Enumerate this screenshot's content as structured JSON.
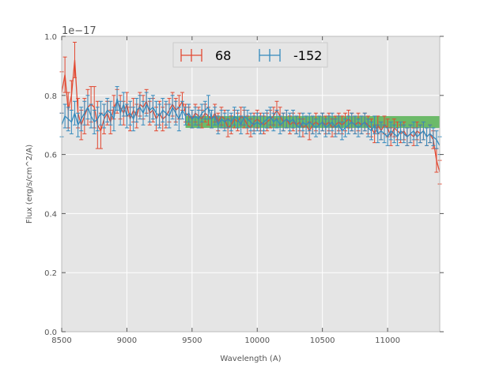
{
  "chart_data": {
    "type": "line",
    "title": "",
    "xlabel": "Wavelength (A)",
    "ylabel": "Flux (erg/s/cm^2/A)",
    "offset_text": "1e−17",
    "xlim": [
      8500,
      11400
    ],
    "ylim": [
      0.0,
      1.0
    ],
    "x_ticks": [
      8500,
      9000,
      9500,
      10000,
      10500,
      11000
    ],
    "x_tick_labels": [
      "8500",
      "9000",
      "9500",
      "10000",
      "10500",
      "11000"
    ],
    "y_ticks": [
      0.0,
      0.2,
      0.4,
      0.6,
      0.8,
      1.0
    ],
    "y_tick_labels": [
      "0.0",
      "0.2",
      "0.4",
      "0.6",
      "0.8",
      "1.0"
    ],
    "grid": true,
    "legend_position": "top-center",
    "band": {
      "x": [
        9450,
        11400
      ],
      "y": [
        0.69,
        0.73
      ],
      "color": "#4daf4a"
    },
    "series": [
      {
        "name": "68",
        "color": "#e24a33",
        "x": [
          8500,
          8525,
          8550,
          8575,
          8600,
          8625,
          8650,
          8675,
          8700,
          8725,
          8750,
          8775,
          8800,
          8825,
          8850,
          8875,
          8900,
          8925,
          8950,
          8975,
          9000,
          9025,
          9050,
          9075,
          9100,
          9125,
          9150,
          9175,
          9200,
          9225,
          9250,
          9275,
          9300,
          9325,
          9350,
          9375,
          9400,
          9425,
          9450,
          9475,
          9500,
          9525,
          9550,
          9575,
          9600,
          9625,
          9650,
          9675,
          9700,
          9725,
          9750,
          9775,
          9800,
          9825,
          9850,
          9875,
          9900,
          9925,
          9950,
          9975,
          10000,
          10025,
          10050,
          10075,
          10100,
          10125,
          10150,
          10175,
          10200,
          10225,
          10250,
          10275,
          10300,
          10325,
          10350,
          10375,
          10400,
          10425,
          10450,
          10475,
          10500,
          10525,
          10550,
          10575,
          10600,
          10625,
          10650,
          10675,
          10700,
          10725,
          10750,
          10775,
          10800,
          10825,
          10850,
          10875,
          10900,
          10925,
          10950,
          10975,
          11000,
          11025,
          11050,
          11075,
          11100,
          11125,
          11150,
          11175,
          11200,
          11225,
          11250,
          11275,
          11300,
          11325,
          11350,
          11375,
          11400
        ],
        "values": [
          0.81,
          0.87,
          0.75,
          0.8,
          0.92,
          0.74,
          0.7,
          0.73,
          0.76,
          0.77,
          0.76,
          0.7,
          0.68,
          0.72,
          0.74,
          0.71,
          0.76,
          0.78,
          0.76,
          0.74,
          0.77,
          0.72,
          0.75,
          0.73,
          0.77,
          0.76,
          0.78,
          0.74,
          0.75,
          0.72,
          0.74,
          0.72,
          0.73,
          0.75,
          0.77,
          0.75,
          0.76,
          0.78,
          0.74,
          0.73,
          0.72,
          0.74,
          0.73,
          0.72,
          0.74,
          0.73,
          0.72,
          0.74,
          0.71,
          0.73,
          0.72,
          0.69,
          0.7,
          0.72,
          0.71,
          0.73,
          0.72,
          0.7,
          0.69,
          0.71,
          0.72,
          0.71,
          0.7,
          0.71,
          0.72,
          0.73,
          0.75,
          0.73,
          0.71,
          0.72,
          0.7,
          0.71,
          0.7,
          0.71,
          0.69,
          0.7,
          0.68,
          0.7,
          0.71,
          0.7,
          0.71,
          0.7,
          0.71,
          0.69,
          0.7,
          0.71,
          0.7,
          0.71,
          0.72,
          0.71,
          0.7,
          0.71,
          0.7,
          0.71,
          0.7,
          0.69,
          0.67,
          0.7,
          0.68,
          0.7,
          0.69,
          0.66,
          0.69,
          0.68,
          0.67,
          0.68,
          0.66,
          0.67,
          0.66,
          0.68,
          0.67,
          0.68,
          0.66,
          0.67,
          0.65,
          0.58,
          0.54
        ],
        "errors": [
          0.07,
          0.06,
          0.06,
          0.05,
          0.06,
          0.05,
          0.05,
          0.06,
          0.06,
          0.06,
          0.07,
          0.08,
          0.06,
          0.05,
          0.04,
          0.04,
          0.04,
          0.04,
          0.04,
          0.04,
          0.04,
          0.04,
          0.04,
          0.04,
          0.04,
          0.04,
          0.04,
          0.04,
          0.04,
          0.04,
          0.04,
          0.04,
          0.04,
          0.04,
          0.04,
          0.04,
          0.04,
          0.03,
          0.03,
          0.03,
          0.03,
          0.03,
          0.03,
          0.03,
          0.03,
          0.03,
          0.03,
          0.03,
          0.03,
          0.03,
          0.03,
          0.03,
          0.03,
          0.03,
          0.03,
          0.03,
          0.03,
          0.03,
          0.03,
          0.03,
          0.03,
          0.03,
          0.03,
          0.03,
          0.03,
          0.03,
          0.03,
          0.03,
          0.03,
          0.03,
          0.03,
          0.03,
          0.03,
          0.03,
          0.03,
          0.03,
          0.03,
          0.03,
          0.03,
          0.03,
          0.03,
          0.03,
          0.03,
          0.03,
          0.03,
          0.03,
          0.03,
          0.03,
          0.03,
          0.03,
          0.03,
          0.03,
          0.03,
          0.03,
          0.03,
          0.03,
          0.03,
          0.03,
          0.03,
          0.03,
          0.03,
          0.03,
          0.03,
          0.03,
          0.03,
          0.03,
          0.03,
          0.03,
          0.03,
          0.03,
          0.03,
          0.03,
          0.03,
          0.03,
          0.03,
          0.04,
          0.04
        ]
      },
      {
        "name": "-152",
        "color": "#348abd",
        "x": [
          8500,
          8525,
          8550,
          8575,
          8600,
          8625,
          8650,
          8675,
          8700,
          8725,
          8750,
          8775,
          8800,
          8825,
          8850,
          8875,
          8900,
          8925,
          8950,
          8975,
          9000,
          9025,
          9050,
          9075,
          9100,
          9125,
          9150,
          9175,
          9200,
          9225,
          9250,
          9275,
          9300,
          9325,
          9350,
          9375,
          9400,
          9425,
          9450,
          9475,
          9500,
          9525,
          9550,
          9575,
          9600,
          9625,
          9650,
          9675,
          9700,
          9725,
          9750,
          9775,
          9800,
          9825,
          9850,
          9875,
          9900,
          9925,
          9950,
          9975,
          10000,
          10025,
          10050,
          10075,
          10100,
          10125,
          10150,
          10175,
          10200,
          10225,
          10250,
          10275,
          10300,
          10325,
          10350,
          10375,
          10400,
          10425,
          10450,
          10475,
          10500,
          10525,
          10550,
          10575,
          10600,
          10625,
          10650,
          10675,
          10700,
          10725,
          10750,
          10775,
          10800,
          10825,
          10850,
          10875,
          10900,
          10925,
          10950,
          10975,
          11000,
          11025,
          11050,
          11075,
          11100,
          11125,
          11150,
          11175,
          11200,
          11225,
          11250,
          11275,
          11300,
          11325,
          11350,
          11375,
          11400
        ],
        "values": [
          0.7,
          0.73,
          0.72,
          0.71,
          0.74,
          0.7,
          0.72,
          0.74,
          0.76,
          0.73,
          0.71,
          0.72,
          0.74,
          0.73,
          0.75,
          0.74,
          0.72,
          0.79,
          0.74,
          0.77,
          0.73,
          0.74,
          0.72,
          0.75,
          0.76,
          0.74,
          0.77,
          0.75,
          0.76,
          0.74,
          0.73,
          0.75,
          0.74,
          0.73,
          0.76,
          0.74,
          0.72,
          0.75,
          0.73,
          0.74,
          0.72,
          0.73,
          0.72,
          0.74,
          0.75,
          0.76,
          0.72,
          0.73,
          0.7,
          0.72,
          0.71,
          0.72,
          0.71,
          0.73,
          0.72,
          0.7,
          0.73,
          0.72,
          0.71,
          0.7,
          0.71,
          0.7,
          0.71,
          0.72,
          0.73,
          0.71,
          0.72,
          0.7,
          0.71,
          0.72,
          0.71,
          0.72,
          0.7,
          0.69,
          0.71,
          0.7,
          0.71,
          0.7,
          0.69,
          0.7,
          0.71,
          0.69,
          0.7,
          0.71,
          0.69,
          0.7,
          0.68,
          0.69,
          0.7,
          0.71,
          0.7,
          0.69,
          0.7,
          0.71,
          0.69,
          0.68,
          0.7,
          0.67,
          0.68,
          0.67,
          0.66,
          0.68,
          0.67,
          0.66,
          0.68,
          0.67,
          0.66,
          0.67,
          0.68,
          0.66,
          0.67,
          0.68,
          0.66,
          0.67,
          0.66,
          0.65,
          0.63
        ],
        "errors": [
          0.04,
          0.04,
          0.04,
          0.04,
          0.04,
          0.04,
          0.04,
          0.04,
          0.04,
          0.04,
          0.04,
          0.04,
          0.04,
          0.04,
          0.04,
          0.04,
          0.04,
          0.04,
          0.04,
          0.04,
          0.04,
          0.04,
          0.04,
          0.04,
          0.04,
          0.04,
          0.04,
          0.04,
          0.04,
          0.04,
          0.04,
          0.04,
          0.04,
          0.04,
          0.04,
          0.04,
          0.04,
          0.03,
          0.03,
          0.03,
          0.03,
          0.03,
          0.03,
          0.03,
          0.03,
          0.04,
          0.03,
          0.03,
          0.03,
          0.03,
          0.03,
          0.03,
          0.03,
          0.03,
          0.03,
          0.03,
          0.03,
          0.03,
          0.03,
          0.03,
          0.03,
          0.03,
          0.03,
          0.03,
          0.03,
          0.03,
          0.03,
          0.03,
          0.03,
          0.03,
          0.03,
          0.03,
          0.03,
          0.03,
          0.03,
          0.03,
          0.03,
          0.03,
          0.03,
          0.03,
          0.03,
          0.03,
          0.03,
          0.03,
          0.03,
          0.03,
          0.03,
          0.03,
          0.03,
          0.03,
          0.03,
          0.03,
          0.03,
          0.03,
          0.03,
          0.03,
          0.03,
          0.03,
          0.03,
          0.03,
          0.03,
          0.03,
          0.03,
          0.03,
          0.03,
          0.03,
          0.03,
          0.03,
          0.03,
          0.03,
          0.03,
          0.03,
          0.03,
          0.03,
          0.03,
          0.03,
          0.03
        ]
      }
    ]
  }
}
